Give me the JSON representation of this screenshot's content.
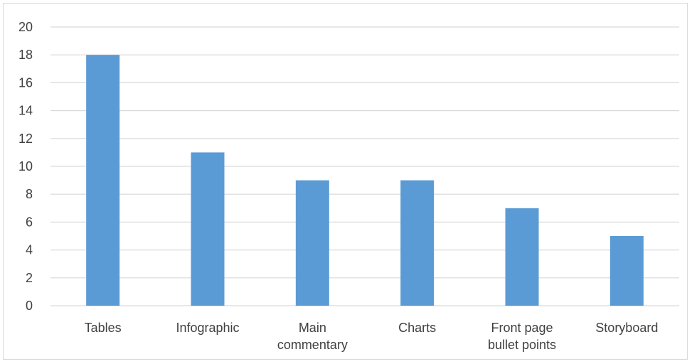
{
  "chart_data": {
    "type": "bar",
    "categories": [
      "Tables",
      "Infographic",
      "Main commentary",
      "Charts",
      "Front page bullet points",
      "Storyboard"
    ],
    "category_lines": [
      [
        "Tables"
      ],
      [
        "Infographic"
      ],
      [
        "Main",
        "commentary"
      ],
      [
        "Charts"
      ],
      [
        "Front page",
        "bullet points"
      ],
      [
        "Storyboard"
      ]
    ],
    "values": [
      18,
      11,
      9,
      9,
      7,
      5
    ],
    "ylim": [
      0,
      20
    ],
    "yticks": [
      0,
      2,
      4,
      6,
      8,
      10,
      12,
      14,
      16,
      18,
      20
    ],
    "title": "",
    "xlabel": "",
    "ylabel": "",
    "grid": true,
    "legend": "none",
    "bar_color": "#5b9bd5",
    "grid_color": "#d9d9d9",
    "text_color": "#404040"
  }
}
